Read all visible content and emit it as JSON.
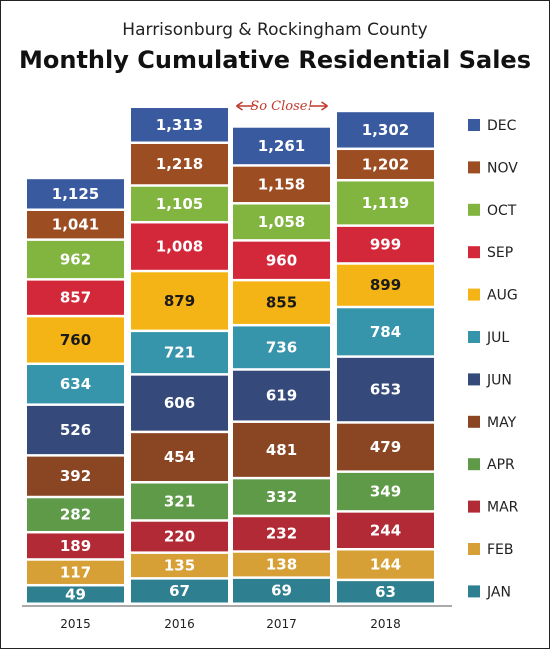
{
  "chart_data": {
    "type": "bar",
    "stacked": true,
    "title": "Monthly Cumulative Residential Sales",
    "subtitle": "Harrisonburg & Rockingham County",
    "categories": [
      "2015",
      "2016",
      "2017",
      "2018"
    ],
    "series": [
      {
        "name": "JAN",
        "color": "#2e7f8f",
        "values": [
          49,
          67,
          69,
          63
        ]
      },
      {
        "name": "FEB",
        "color": "#d6a036",
        "values": [
          117,
          135,
          138,
          144
        ]
      },
      {
        "name": "MAR",
        "color": "#b22a35",
        "values": [
          189,
          220,
          232,
          244
        ]
      },
      {
        "name": "APR",
        "color": "#5e9a48",
        "values": [
          282,
          321,
          332,
          349
        ]
      },
      {
        "name": "MAY",
        "color": "#8a4523",
        "values": [
          392,
          454,
          481,
          479
        ]
      },
      {
        "name": "JUN",
        "color": "#354a7a",
        "values": [
          526,
          606,
          619,
          653
        ]
      },
      {
        "name": "JUL",
        "color": "#3795ab",
        "values": [
          634,
          721,
          736,
          784
        ]
      },
      {
        "name": "AUG",
        "color": "#f5b415",
        "values": [
          760,
          879,
          855,
          899
        ]
      },
      {
        "name": "SEP",
        "color": "#d3273a",
        "values": [
          857,
          1008,
          960,
          999
        ]
      },
      {
        "name": "OCT",
        "color": "#82b440",
        "values": [
          962,
          1105,
          1058,
          1119
        ]
      },
      {
        "name": "NOV",
        "color": "#9c4d22",
        "values": [
          1041,
          1218,
          1158,
          1202
        ]
      },
      {
        "name": "DEC",
        "color": "#3a5aa0",
        "values": [
          1125,
          1313,
          1261,
          1302
        ]
      }
    ],
    "legend_position": "right",
    "grid": false,
    "annotation": {
      "text": "So Close!",
      "category": "2017"
    }
  }
}
